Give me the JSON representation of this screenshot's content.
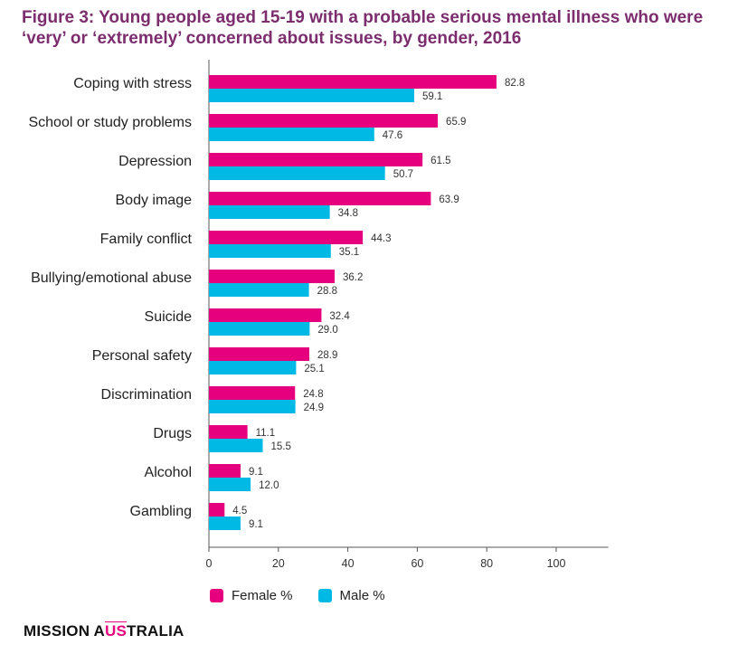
{
  "title_line1": "Figure 3: Young people aged 15-19 with a probable serious mental illness who were",
  "title_line2": "‘very’ or ‘extremely’ concerned about issues, by gender, 2016",
  "brand": {
    "part1": "MISSION A",
    "part2": "US",
    "part3": "TRALIA"
  },
  "colors": {
    "female": "#e6007e",
    "male": "#00b9e4",
    "title": "#7b2d6e"
  },
  "chart_data": {
    "type": "bar",
    "orientation": "horizontal",
    "categories": [
      "Coping with stress",
      "School or study problems",
      "Depression",
      "Body image",
      "Family conflict",
      "Bullying/emotional abuse",
      "Suicide",
      "Personal safety",
      "Discrimination",
      "Drugs",
      "Alcohol",
      "Gambling"
    ],
    "series": [
      {
        "name": "Female %",
        "values": [
          82.8,
          65.9,
          61.5,
          63.9,
          44.3,
          36.2,
          32.4,
          28.9,
          24.8,
          11.1,
          9.1,
          4.5
        ],
        "labels": [
          "82.8",
          "65.9",
          "61.5",
          "63.9",
          "44.3",
          "36.2",
          "32.4",
          "28.9",
          "24.8",
          "11.1",
          "9.1",
          "4.5"
        ]
      },
      {
        "name": "Male %",
        "values": [
          59.1,
          47.6,
          50.7,
          34.8,
          35.1,
          28.8,
          29.0,
          25.1,
          24.9,
          15.5,
          12.0,
          9.1
        ],
        "labels": [
          "59.1",
          "47.6",
          "50.7",
          "34.8",
          "35.1",
          "28.8",
          "29.0",
          "25.1",
          "24.9",
          "15.5",
          "12.0",
          "9.1"
        ]
      }
    ],
    "xlim": [
      0,
      115
    ],
    "xticks": [
      "0",
      "20",
      "40",
      "60",
      "80",
      "100"
    ],
    "xlabel": "",
    "ylabel": "",
    "grid": false,
    "legend_position": "bottom-left"
  }
}
